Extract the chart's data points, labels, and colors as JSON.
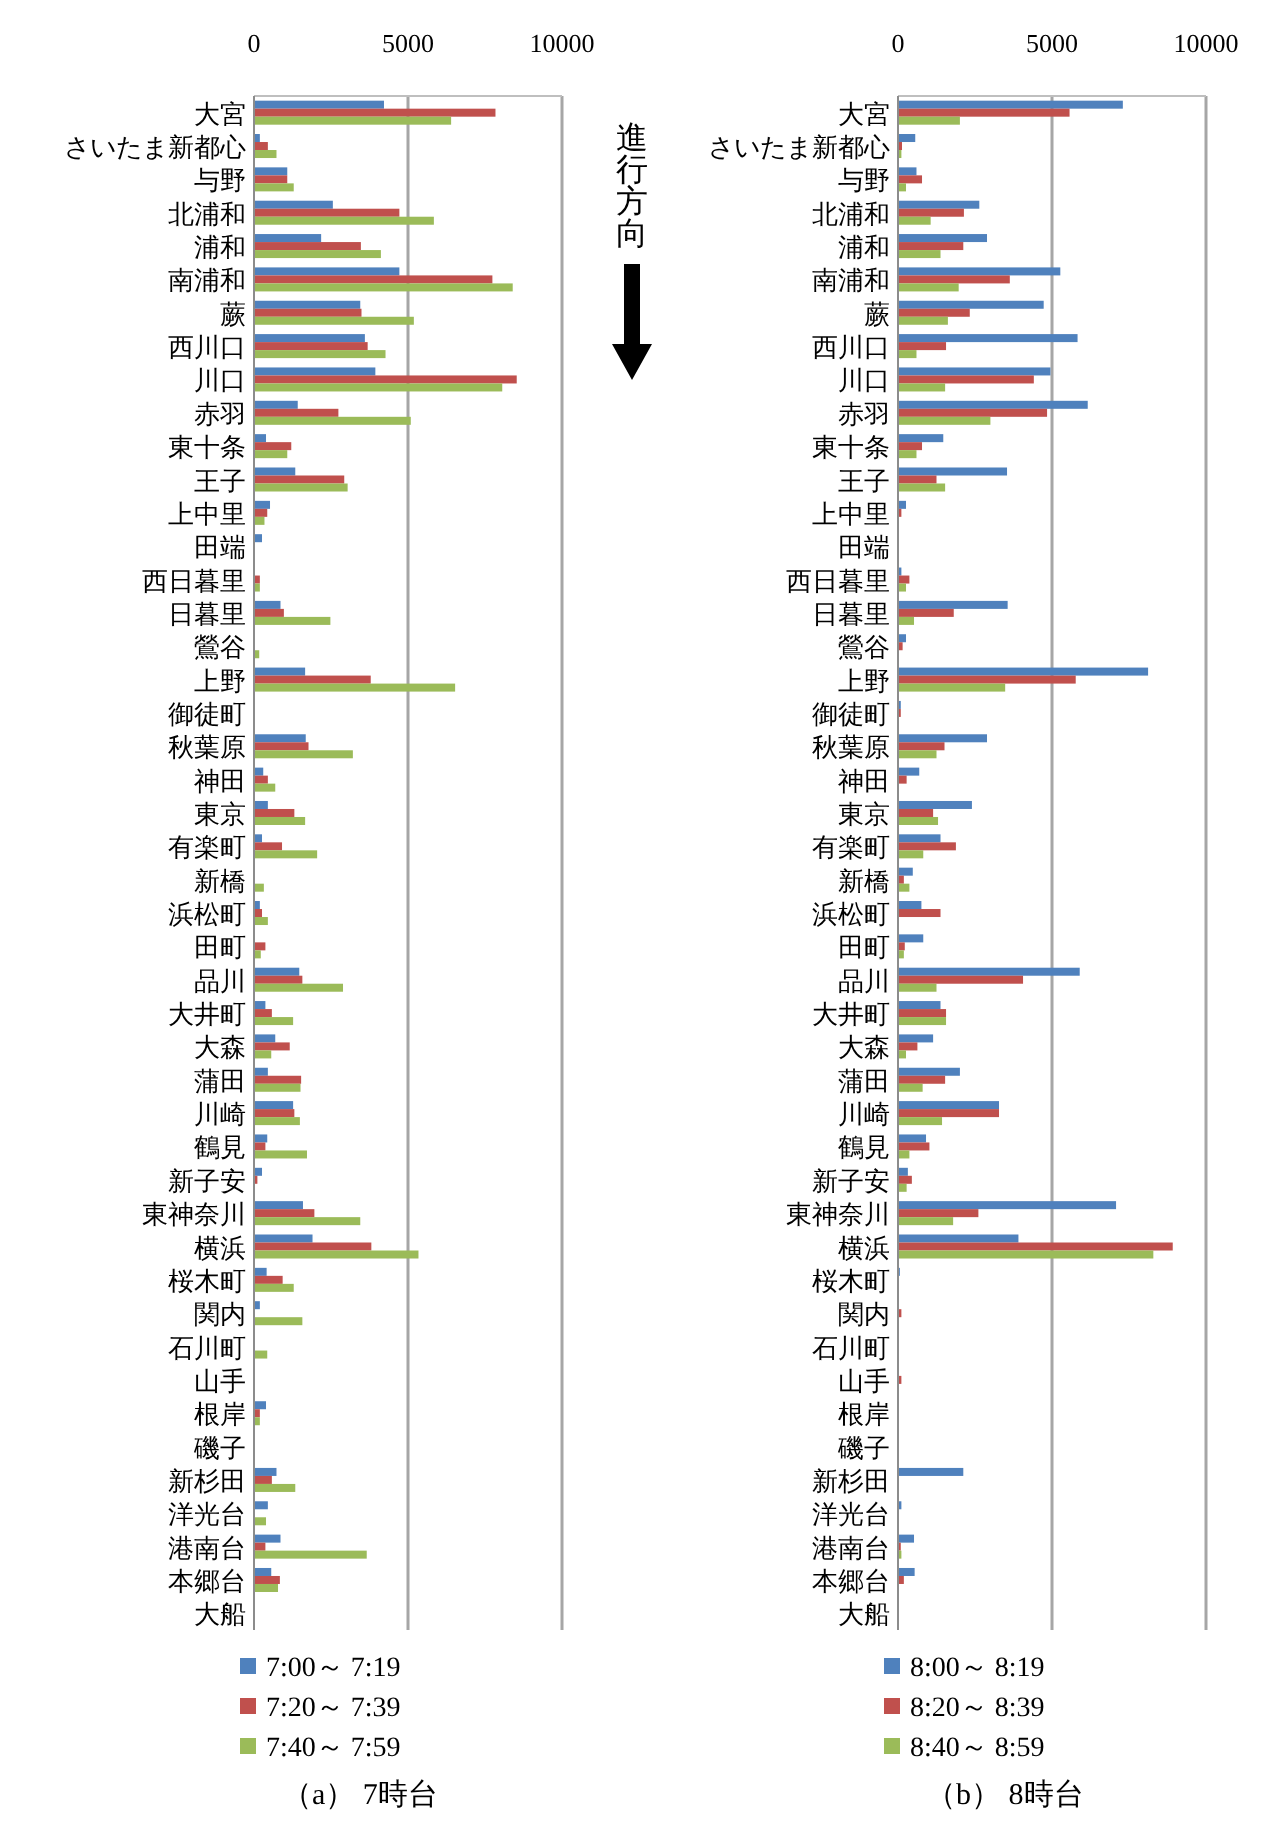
{
  "chart_data": [
    {
      "type": "bar",
      "orientation": "horizontal",
      "title": "（a） 7時台",
      "categories": [
        "大宮",
        "さいたま新都心",
        "与野",
        "北浦和",
        "浦和",
        "南浦和",
        "蕨",
        "西川口",
        "川口",
        "赤羽",
        "東十条",
        "王子",
        "上中里",
        "田端",
        "西日暮里",
        "日暮里",
        "鶯谷",
        "上野",
        "御徒町",
        "秋葉原",
        "神田",
        "東京",
        "有楽町",
        "新橋",
        "浜松町",
        "田町",
        "品川",
        "大井町",
        "大森",
        "蒲田",
        "川崎",
        "鶴見",
        "新子安",
        "東神奈川",
        "横浜",
        "桜木町",
        "関内",
        "石川町",
        "山手",
        "根岸",
        "磯子",
        "新杉田",
        "洋光台",
        "港南台",
        "本郷台",
        "大船"
      ],
      "xlim": [
        0,
        10000
      ],
      "xticks": [
        0,
        5000,
        10000
      ],
      "grid": "x",
      "legend": "bottom",
      "series": [
        {
          "name": "7:00～ 7:19",
          "color": "#4f81bd",
          "values": [
            4220,
            190,
            1080,
            2560,
            2180,
            4720,
            3450,
            3600,
            3940,
            1420,
            390,
            1340,
            520,
            260,
            20,
            860,
            0,
            1660,
            20,
            1680,
            300,
            450,
            260,
            0,
            190,
            20,
            1470,
            370,
            690,
            450,
            1270,
            430,
            260,
            1590,
            1900,
            410,
            190,
            0,
            20,
            390,
            0,
            730,
            450,
            860,
            560,
            0
          ]
        },
        {
          "name": "7:20～ 7:39",
          "color": "#c0504d",
          "values": [
            7840,
            450,
            1080,
            4720,
            3470,
            7740,
            3490,
            3690,
            8530,
            2740,
            1210,
            2930,
            430,
            0,
            190,
            970,
            0,
            3790,
            0,
            1770,
            450,
            1310,
            910,
            0,
            260,
            370,
            1570,
            580,
            1160,
            1530,
            1310,
            370,
            110,
            1960,
            3810,
            930,
            0,
            0,
            0,
            190,
            0,
            580,
            0,
            370,
            840,
            0
          ]
        },
        {
          "name": "7:40～ 7:59",
          "color": "#9bbb59",
          "values": [
            6400,
            730,
            1290,
            5840,
            4120,
            8400,
            5190,
            4270,
            8060,
            5090,
            1080,
            3040,
            340,
            0,
            190,
            2480,
            170,
            6530,
            0,
            3210,
            690,
            1660,
            2050,
            320,
            450,
            220,
            2890,
            1270,
            560,
            1510,
            1490,
            1720,
            0,
            3450,
            5340,
            1290,
            1570,
            430,
            0,
            190,
            0,
            1340,
            390,
            3660,
            780,
            0
          ]
        }
      ]
    },
    {
      "type": "bar",
      "orientation": "horizontal",
      "title": "（b） 8時台",
      "annotations": [
        "進行方向"
      ],
      "categories": [
        "大宮",
        "さいたま新都心",
        "与野",
        "北浦和",
        "浦和",
        "南浦和",
        "蕨",
        "西川口",
        "川口",
        "赤羽",
        "東十条",
        "王子",
        "上中里",
        "田端",
        "西日暮里",
        "日暮里",
        "鶯谷",
        "上野",
        "御徒町",
        "秋葉原",
        "神田",
        "東京",
        "有楽町",
        "新橋",
        "浜松町",
        "田町",
        "品川",
        "大井町",
        "大森",
        "蒲田",
        "川崎",
        "鶴見",
        "新子安",
        "東神奈川",
        "横浜",
        "桜木町",
        "関内",
        "石川町",
        "山手",
        "根岸",
        "磯子",
        "新杉田",
        "洋光台",
        "港南台",
        "本郷台",
        "大船"
      ],
      "xlim": [
        0,
        10000
      ],
      "xticks": [
        0,
        5000,
        10000
      ],
      "grid": "x",
      "legend": "bottom",
      "series": [
        {
          "name": "8:00～ 8:19",
          "color": "#4f81bd",
          "values": [
            7300,
            560,
            600,
            2640,
            2890,
            5270,
            4730,
            5830,
            4950,
            6160,
            1470,
            3540,
            260,
            0,
            110,
            3560,
            260,
            8120,
            90,
            2890,
            690,
            2400,
            1380,
            480,
            760,
            820,
            5900,
            1380,
            1140,
            2010,
            3280,
            910,
            320,
            7080,
            3910,
            60,
            0,
            0,
            0,
            null,
            0,
            2120,
            110,
            520,
            540,
            0
          ]
        },
        {
          "name": "8:20～ 8:39",
          "color": "#c0504d",
          "values": [
            5570,
            130,
            780,
            2140,
            2120,
            3630,
            2330,
            1560,
            4410,
            4840,
            780,
            1250,
            110,
            0,
            370,
            1810,
            150,
            5770,
            90,
            1510,
            280,
            1140,
            1880,
            190,
            1380,
            220,
            4060,
            1560,
            630,
            1530,
            3280,
            1020,
            450,
            2610,
            8920,
            0,
            110,
            0,
            110,
            0,
            0,
            0,
            0,
            90,
            190,
            0
          ]
        },
        {
          "name": "8:40～ 8:59",
          "color": "#9bbb59",
          "values": [
            2010,
            110,
            260,
            1060,
            1380,
            1970,
            1620,
            600,
            1530,
            3000,
            600,
            1530,
            0,
            0,
            260,
            520,
            0,
            3480,
            0,
            1250,
            null,
            1300,
            820,
            370,
            0,
            190,
            1250,
            1560,
            260,
            800,
            1430,
            370,
            280,
            1790,
            8290,
            0,
            0,
            0,
            0,
            0,
            0,
            0,
            0,
            110,
            null,
            0
          ]
        }
      ]
    }
  ]
}
